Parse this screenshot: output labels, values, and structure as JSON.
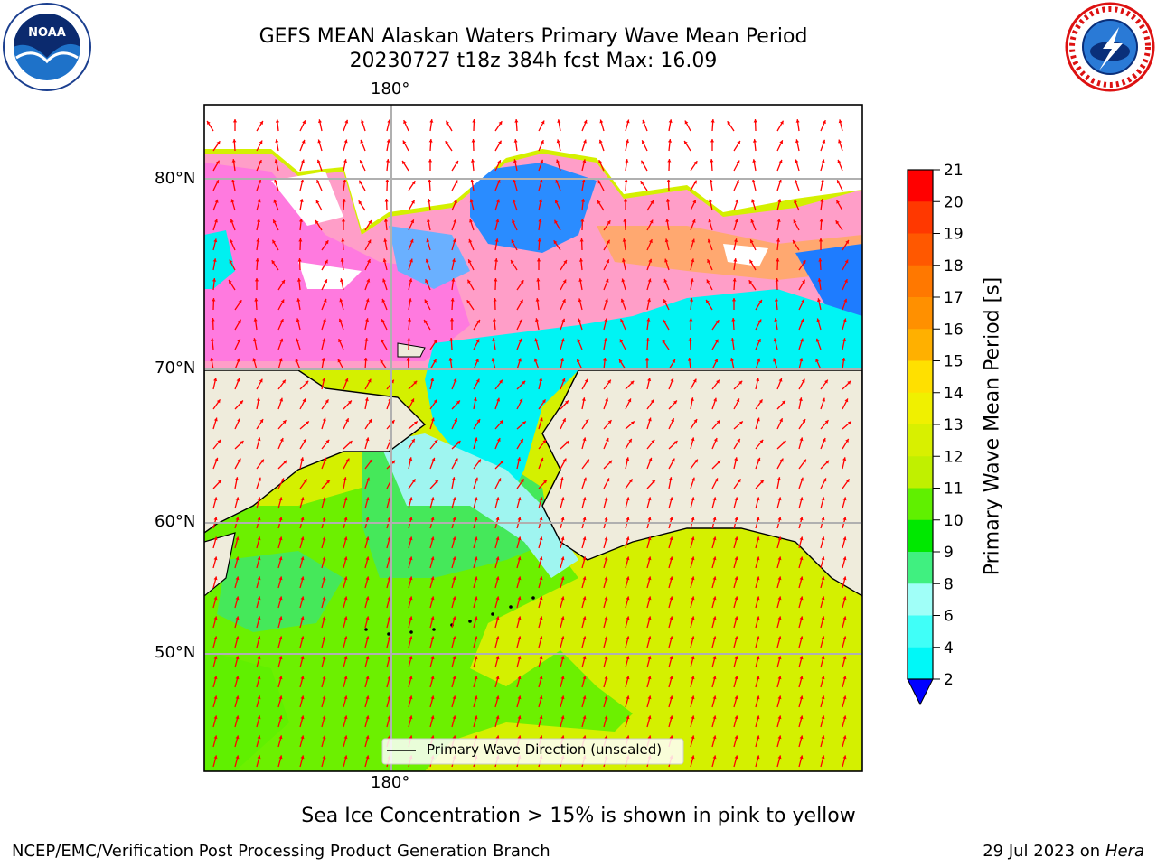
{
  "header": {
    "title_line1": "GEFS MEAN Alaskan Waters Primary Wave Mean Period",
    "title_line2": "20230727 t18z 384h fcst   Max: 16.09"
  },
  "logos": {
    "left_icon": "noaa-logo",
    "right_icon": "nws-logo"
  },
  "map": {
    "lon_label_top": "180°",
    "lon_label_bottom": "180°",
    "lat_labels": [
      "80°N",
      "70°N",
      "60°N",
      "50°N"
    ],
    "legend_text": "Primary Wave Direction (unscaled)",
    "land_color": "#efecdc",
    "arrow_color": "#ff0000"
  },
  "colorbar": {
    "label": "Primary Wave Mean Period [s]",
    "ticks": [
      "21",
      "20",
      "19",
      "18",
      "17",
      "16",
      "15",
      "14",
      "13",
      "12",
      "11",
      "10",
      "9",
      "8",
      "6",
      "4",
      "2"
    ],
    "colors": [
      "#ff0000",
      "#ff3800",
      "#ff5800",
      "#ff7800",
      "#ff9000",
      "#ffb000",
      "#ffe000",
      "#f0f000",
      "#d8f000",
      "#c0f000",
      "#60f000",
      "#00e800",
      "#40f080",
      "#a0fff8",
      "#40fff8",
      "#00f8f8",
      "#0080ff",
      "#0000ff"
    ]
  },
  "footer": {
    "note": "Sea Ice Concentration > 15% is shown in pink to yellow",
    "credit": "NCEP/EMC/Verification Post Processing Product Generation Branch",
    "date_prefix": "29 Jul 2023 on ",
    "date_host": "Hera"
  }
}
